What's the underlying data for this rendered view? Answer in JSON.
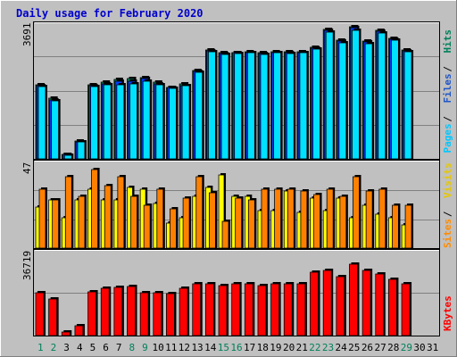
{
  "title": "Daily usage for February 2020",
  "days": [
    "1",
    "2",
    "3",
    "4",
    "5",
    "6",
    "7",
    "8",
    "9",
    "10",
    "11",
    "12",
    "13",
    "14",
    "15",
    "16",
    "17",
    "18",
    "19",
    "20",
    "21",
    "22",
    "23",
    "24",
    "25",
    "26",
    "27",
    "28",
    "29",
    "30",
    "31"
  ],
  "weekend_days": [
    "1",
    "2",
    "8",
    "9",
    "15",
    "16",
    "22",
    "23",
    "29"
  ],
  "scales": {
    "hits_max": "3691",
    "sites_max": "47",
    "kbytes_max": "36719"
  },
  "right_labels": {
    "panel1": [
      {
        "text": "Pages",
        "color": "#00c8ff"
      },
      {
        "text": "Files",
        "color": "#1f56c8"
      },
      {
        "text": "Hits",
        "color": "#00805a"
      }
    ],
    "panel2": [
      {
        "text": "Sites",
        "color": "#ff8c00"
      },
      {
        "text": "Visits",
        "color": "#e6c800"
      }
    ],
    "panel3": [
      {
        "text": "KBytes",
        "color": "#ff0000"
      }
    ]
  },
  "colors": {
    "background": "#c0c0c0",
    "title": "#0000cc",
    "hits": "#00805a",
    "files": "#0040ff",
    "pages": "#00e0ff",
    "visits": "#ffff00",
    "sites": "#ff8000",
    "kbytes": "#ff0000",
    "weekend_label": "#00805a",
    "weekday_label": "#000000"
  },
  "chart_data": [
    {
      "type": "bar",
      "title": "Daily usage for February 2020",
      "categories": [
        "1",
        "2",
        "3",
        "4",
        "5",
        "6",
        "7",
        "8",
        "9",
        "10",
        "11",
        "12",
        "13",
        "14",
        "15",
        "16",
        "17",
        "18",
        "19",
        "20",
        "21",
        "22",
        "23",
        "24",
        "25",
        "26",
        "27",
        "28",
        "29",
        "30",
        "31"
      ],
      "ylim": [
        0,
        3691
      ],
      "series": [
        {
          "name": "Hits",
          "values": [
            2050,
            1680,
            130,
            500,
            2060,
            2120,
            2200,
            2220,
            2260,
            2120,
            1990,
            2070,
            2450,
            3020,
            2950,
            2960,
            2980,
            2940,
            2980,
            2970,
            2980,
            3090,
            3590,
            3300,
            3660,
            3280,
            3560,
            3350,
            3020,
            0,
            0
          ]
        },
        {
          "name": "Files",
          "values": [
            2020,
            1640,
            120,
            480,
            2030,
            2090,
            2150,
            2160,
            2220,
            2090,
            1970,
            2040,
            2420,
            3000,
            2930,
            2940,
            2960,
            2920,
            2960,
            2950,
            2960,
            3070,
            3560,
            3270,
            3630,
            3250,
            3540,
            3330,
            3000,
            0,
            0
          ]
        },
        {
          "name": "Pages",
          "values": [
            2000,
            1620,
            110,
            470,
            2010,
            2060,
            2060,
            2080,
            2150,
            2060,
            1950,
            2030,
            2410,
            2980,
            2910,
            2920,
            2940,
            2900,
            2940,
            2930,
            2940,
            3040,
            3520,
            3220,
            3560,
            3200,
            3500,
            3290,
            2980,
            0,
            0
          ]
        }
      ]
    },
    {
      "type": "bar",
      "categories": [
        "1",
        "2",
        "3",
        "4",
        "5",
        "6",
        "7",
        "8",
        "9",
        "10",
        "11",
        "12",
        "13",
        "14",
        "15",
        "16",
        "17",
        "18",
        "19",
        "20",
        "21",
        "22",
        "23",
        "24",
        "25",
        "26",
        "27",
        "28",
        "29",
        "30",
        "31"
      ],
      "ylim": [
        0,
        47
      ],
      "series": [
        {
          "name": "Visits",
          "values": [
            23,
            27,
            17,
            27,
            33,
            27,
            27,
            34,
            33,
            25,
            14,
            17,
            29,
            34,
            41,
            29,
            29,
            21,
            21,
            32,
            20,
            28,
            21,
            28,
            17,
            24,
            19,
            17,
            13,
            0,
            0
          ]
        },
        {
          "name": "Sites",
          "values": [
            33,
            27,
            40,
            29,
            44,
            35,
            40,
            29,
            24,
            33,
            22,
            28,
            40,
            31,
            15,
            28,
            27,
            33,
            33,
            33,
            32,
            30,
            33,
            29,
            40,
            32,
            33,
            24,
            24,
            0,
            0
          ]
        }
      ]
    },
    {
      "type": "bar",
      "categories": [
        "1",
        "2",
        "3",
        "4",
        "5",
        "6",
        "7",
        "8",
        "9",
        "10",
        "11",
        "12",
        "13",
        "14",
        "15",
        "16",
        "17",
        "18",
        "19",
        "20",
        "21",
        "22",
        "23",
        "24",
        "25",
        "26",
        "27",
        "28",
        "29",
        "30",
        "31"
      ],
      "ylim": [
        0,
        36719
      ],
      "series": [
        {
          "name": "KBytes",
          "values": [
            19000,
            16500,
            1400,
            4500,
            19500,
            21000,
            21500,
            22000,
            19000,
            19000,
            18900,
            21000,
            23000,
            23000,
            22500,
            23000,
            23000,
            22500,
            23000,
            23000,
            23000,
            28500,
            29000,
            26500,
            32000,
            29000,
            27500,
            25000,
            23000,
            0,
            0
          ]
        }
      ]
    }
  ]
}
